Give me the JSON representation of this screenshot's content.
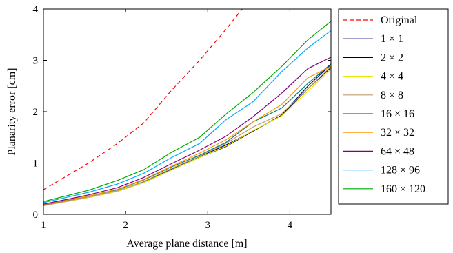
{
  "chart_data": {
    "type": "line",
    "xlabel": "Average plane distance [m]",
    "ylabel": "Planarity error [cm]",
    "xlim": [
      1,
      4.5
    ],
    "ylim": [
      0,
      4
    ],
    "xticks": [
      1,
      2,
      3,
      4
    ],
    "yticks": [
      0,
      1,
      2,
      3,
      4
    ],
    "grid": false,
    "legend_position": "outside-right",
    "x": [
      1.0,
      1.55,
      1.9,
      2.22,
      2.55,
      2.9,
      3.22,
      3.55,
      3.9,
      4.22,
      4.5
    ],
    "series": [
      {
        "name": "Original",
        "color": "#ff0000",
        "dashed": true,
        "x": [
          1.0,
          1.55,
          1.9,
          2.22,
          2.55,
          2.9,
          3.22,
          3.42
        ],
        "values": [
          0.48,
          1.0,
          1.38,
          1.78,
          2.4,
          3.0,
          3.6,
          4.0
        ]
      },
      {
        "name": "1 × 1",
        "color": "#00007f",
        "values": [
          0.18,
          0.34,
          0.46,
          0.63,
          0.87,
          1.12,
          1.35,
          1.62,
          1.93,
          2.5,
          2.92
        ]
      },
      {
        "name": "2 × 2",
        "color": "#000000",
        "values": [
          0.17,
          0.33,
          0.45,
          0.62,
          0.86,
          1.11,
          1.32,
          1.62,
          1.93,
          2.45,
          2.86
        ]
      },
      {
        "name": "4 × 4",
        "color": "#e6e600",
        "values": [
          0.17,
          0.33,
          0.45,
          0.62,
          0.86,
          1.11,
          1.33,
          1.63,
          1.92,
          2.4,
          2.83
        ]
      },
      {
        "name": "8 × 8",
        "color": "#c49a6c",
        "values": [
          0.17,
          0.34,
          0.46,
          0.64,
          0.89,
          1.13,
          1.38,
          1.7,
          1.96,
          2.45,
          2.88
        ]
      },
      {
        "name": "16 × 16",
        "color": "#007f7f",
        "values": [
          0.19,
          0.36,
          0.48,
          0.67,
          0.92,
          1.15,
          1.4,
          1.8,
          2.07,
          2.55,
          2.93
        ]
      },
      {
        "name": "32 × 32",
        "color": "#ff9900",
        "values": [
          0.19,
          0.36,
          0.49,
          0.68,
          0.93,
          1.19,
          1.45,
          1.8,
          2.14,
          2.66,
          2.88
        ]
      },
      {
        "name": "64 × 48",
        "color": "#7f007f",
        "values": [
          0.2,
          0.38,
          0.52,
          0.72,
          0.98,
          1.25,
          1.52,
          1.9,
          2.36,
          2.84,
          3.06
        ]
      },
      {
        "name": "128 × 96",
        "color": "#00aaff",
        "values": [
          0.23,
          0.43,
          0.59,
          0.8,
          1.1,
          1.38,
          1.84,
          2.19,
          2.78,
          3.24,
          3.58
        ]
      },
      {
        "name": "160 × 120",
        "color": "#00aa00",
        "values": [
          0.25,
          0.47,
          0.66,
          0.87,
          1.2,
          1.5,
          1.95,
          2.37,
          2.88,
          3.4,
          3.76
        ]
      }
    ]
  }
}
